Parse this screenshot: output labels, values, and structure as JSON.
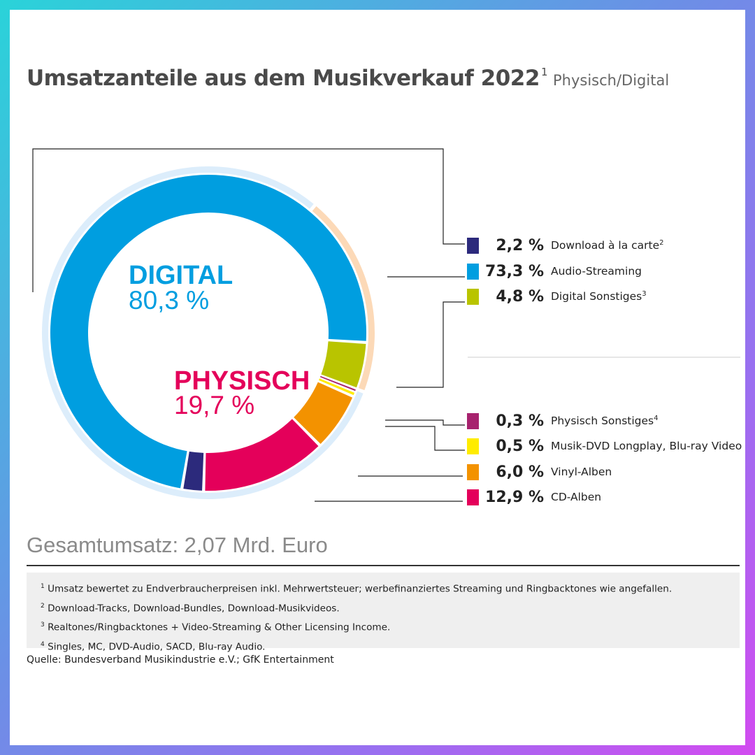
{
  "header": {
    "title": "Umsatzanteile aus dem Musikverkauf 2022",
    "title_note": "1",
    "subtitle": "Physisch/Digital"
  },
  "chart_data": {
    "type": "pie",
    "style": "donut",
    "groups": [
      {
        "name": "DIGITAL",
        "share_label": "80,3 %",
        "color": "#009ee0",
        "ring_color": "#dcedfb"
      },
      {
        "name": "PHYSISCH",
        "share_label": "19,7 %",
        "color": "#e4005a",
        "ring_color": "#fcd9b7"
      }
    ],
    "slices": [
      {
        "label": "Download à la carte",
        "note": "2",
        "value": 2.2,
        "value_label": "2,2 %",
        "color": "#2c2a7c",
        "group": "DIGITAL"
      },
      {
        "label": "Audio-Streaming",
        "note": "",
        "value": 73.3,
        "value_label": "73,3 %",
        "color": "#009ee0",
        "group": "DIGITAL"
      },
      {
        "label": "Digital Sonstiges",
        "note": "3",
        "value": 4.8,
        "value_label": "4,8 %",
        "color": "#b9c400",
        "group": "DIGITAL"
      },
      {
        "label": "Physisch Sonstiges",
        "note": "4",
        "value": 0.3,
        "value_label": "0,3 %",
        "color": "#a7226e",
        "group": "PHYSISCH"
      },
      {
        "label": "Musik-DVD Longplay, Blu-ray Video",
        "note": "",
        "value": 0.5,
        "value_label": "0,5 %",
        "color": "#ffec00",
        "group": "PHYSISCH"
      },
      {
        "label": "Vinyl-Alben",
        "note": "",
        "value": 6.0,
        "value_label": "6,0 %",
        "color": "#f39200",
        "group": "PHYSISCH"
      },
      {
        "label": "CD-Alben",
        "note": "",
        "value": 12.9,
        "value_label": "12,9 %",
        "color": "#e4005a",
        "group": "PHYSISCH"
      }
    ]
  },
  "summary": {
    "total": "Gesamtumsatz: 2,07 Mrd. Euro"
  },
  "footnotes": [
    {
      "mark": "1",
      "text": "Umsatz bewertet zu Endverbraucherpreisen inkl. Mehrwertsteuer; werbefinanziertes Streaming und Ringbacktones wie angefallen."
    },
    {
      "mark": "2",
      "text": "Download-Tracks, Download-Bundles, Download-Musikvideos."
    },
    {
      "mark": "3",
      "text": "Realtones/Ringbacktones + Video-Streaming & Other Licensing Income."
    },
    {
      "mark": "4",
      "text": "Singles, MC, DVD-Audio, SACD, Blu-ray Audio."
    }
  ],
  "source": "Quelle: Bundesverband Musikindustrie e.V.; GfK Entertainment"
}
